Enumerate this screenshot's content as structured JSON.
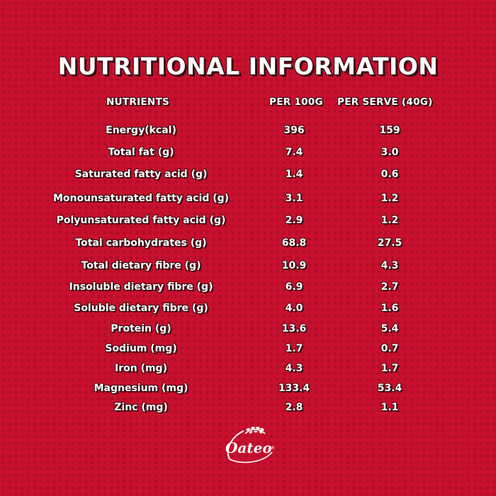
{
  "title": "NUTRITIONAL INFORMATION",
  "headers": {
    "nutrients": "NUTRIENTS",
    "per_100g": "PER 100G",
    "per_serve": "PER SERVE (40G)"
  },
  "rows": [
    {
      "name": "Energy(kcal)",
      "per_100g": "396",
      "per_serve": "159"
    },
    {
      "name": "Total fat (g)",
      "per_100g": "7.4",
      "per_serve": "3.0"
    },
    {
      "name": "Saturated fatty acid (g)",
      "per_100g": "1.4",
      "per_serve": "0.6"
    },
    {
      "name": "Monounsaturated fatty acid (g)",
      "per_100g": "3.1",
      "per_serve": "1.2"
    },
    {
      "name": "Polyunsaturated fatty acid (g)",
      "per_100g": "2.9",
      "per_serve": "1.2"
    },
    {
      "name": "Total carbohydrates (g)",
      "per_100g": "68.8",
      "per_serve": "27.5"
    },
    {
      "name": "Total dietary fibre (g)",
      "per_100g": "10.9",
      "per_serve": "4.3"
    },
    {
      "name": "Insoluble dietary fibre (g)",
      "per_100g": "6.9",
      "per_serve": "2.7"
    },
    {
      "name": "Soluble dietary fibre (g)",
      "per_100g": "4.0",
      "per_serve": "1.6"
    },
    {
      "name": "Protein (g)",
      "per_100g": "13.6",
      "per_serve": "5.4"
    },
    {
      "name": "Sodium (mg)",
      "per_100g": "1.7",
      "per_serve": "0.7"
    },
    {
      "name": "Iron (mg)",
      "per_100g": "4.3",
      "per_serve": "1.7"
    },
    {
      "name": "Magnesium (mg)",
      "per_100g": "133.4",
      "per_serve": "53.4"
    },
    {
      "name": "Zinc (mg)",
      "per_100g": "2.8",
      "per_serve": "1.1"
    }
  ],
  "logo": {
    "text": "Oateo",
    "icon": "oat-sprig-icon"
  },
  "colors": {
    "background": "#c8102e",
    "text": "#ffffff",
    "shadow": "#3a0d14"
  }
}
